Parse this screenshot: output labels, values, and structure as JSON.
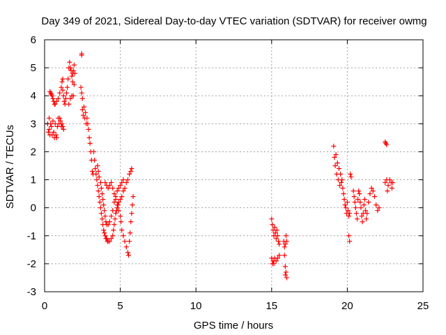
{
  "chart_data": {
    "type": "scatter",
    "title": "Day 349 of 2021, Sidereal Day-to-day VTEC variation (SDTVAR) for receiver owmg",
    "xlabel": "GPS time / hours",
    "ylabel": "SDTVAR / TECUs",
    "xlim": [
      0,
      25
    ],
    "ylim": [
      -3,
      6
    ],
    "xticks": [
      "0",
      "5",
      "10",
      "15",
      "20",
      "25"
    ],
    "yticks": [
      "-3",
      "-2",
      "-1",
      "0",
      "1",
      "2",
      "3",
      "4",
      "5",
      "6"
    ],
    "grid": true,
    "marker": "+",
    "color": "#ff0000",
    "series": [
      {
        "name": "SDTVAR",
        "points": [
          [
            0.2,
            3.0
          ],
          [
            0.25,
            2.7
          ],
          [
            0.3,
            3.2
          ],
          [
            0.3,
            2.8
          ],
          [
            0.35,
            2.6
          ],
          [
            0.4,
            3.0
          ],
          [
            0.45,
            2.9
          ],
          [
            0.5,
            2.6
          ],
          [
            0.55,
            3.1
          ],
          [
            0.6,
            2.7
          ],
          [
            0.65,
            2.5
          ],
          [
            0.7,
            3.0
          ],
          [
            0.75,
            2.6
          ],
          [
            0.8,
            2.5
          ],
          [
            0.85,
            2.9
          ],
          [
            0.9,
            3.2
          ],
          [
            0.95,
            3.0
          ],
          [
            1.0,
            3.2
          ],
          [
            1.05,
            3.1
          ],
          [
            1.1,
            2.9
          ],
          [
            1.15,
            3.0
          ],
          [
            1.2,
            2.9
          ],
          [
            1.25,
            2.8
          ],
          [
            0.35,
            4.15
          ],
          [
            0.4,
            4.1
          ],
          [
            0.45,
            4.05
          ],
          [
            0.5,
            4.0
          ],
          [
            0.55,
            3.9
          ],
          [
            0.6,
            3.8
          ],
          [
            0.65,
            3.7
          ],
          [
            0.7,
            3.7
          ],
          [
            0.8,
            3.8
          ],
          [
            0.9,
            3.9
          ],
          [
            1.0,
            4.1
          ],
          [
            1.1,
            4.3
          ],
          [
            1.15,
            4.5
          ],
          [
            1.2,
            4.6
          ],
          [
            1.2,
            4.2
          ],
          [
            1.25,
            4.0
          ],
          [
            1.3,
            3.8
          ],
          [
            1.35,
            3.7
          ],
          [
            1.4,
            3.9
          ],
          [
            1.45,
            4.1
          ],
          [
            1.5,
            4.3
          ],
          [
            1.55,
            4.6
          ],
          [
            1.6,
            5.0
          ],
          [
            1.65,
            5.2
          ],
          [
            1.7,
            5.0
          ],
          [
            1.75,
            4.9
          ],
          [
            1.8,
            4.7
          ],
          [
            1.85,
            4.5
          ],
          [
            1.9,
            4.0
          ],
          [
            1.6,
            3.7
          ],
          [
            1.7,
            3.9
          ],
          [
            1.8,
            4.0
          ],
          [
            1.85,
            4.8
          ],
          [
            1.9,
            4.9
          ],
          [
            1.95,
            5.1
          ],
          [
            2.0,
            4.8
          ],
          [
            1.95,
            4.4
          ],
          [
            2.45,
            5.5
          ],
          [
            2.45,
            5.45
          ],
          [
            2.4,
            4.3
          ],
          [
            2.45,
            4.1
          ],
          [
            2.5,
            3.9
          ],
          [
            2.5,
            3.5
          ],
          [
            2.55,
            3.3
          ],
          [
            2.6,
            3.6
          ],
          [
            2.65,
            3.2
          ],
          [
            2.7,
            3.4
          ],
          [
            2.75,
            3.0
          ],
          [
            2.8,
            3.2
          ],
          [
            2.85,
            3.0
          ],
          [
            2.9,
            2.8
          ],
          [
            2.95,
            2.5
          ],
          [
            3.0,
            2.3
          ],
          [
            3.05,
            2.0
          ],
          [
            3.1,
            1.7
          ],
          [
            3.15,
            1.3
          ],
          [
            3.2,
            1.2
          ],
          [
            3.25,
            2.0
          ],
          [
            3.3,
            1.7
          ],
          [
            3.35,
            1.4
          ],
          [
            3.4,
            1.2
          ],
          [
            3.45,
            1.0
          ],
          [
            3.5,
            0.8
          ],
          [
            3.55,
            0.6
          ],
          [
            3.6,
            0.4
          ],
          [
            3.65,
            0.2
          ],
          [
            3.7,
            0.0
          ],
          [
            3.75,
            -0.2
          ],
          [
            3.8,
            -0.4
          ],
          [
            3.85,
            -0.6
          ],
          [
            3.9,
            -0.8
          ],
          [
            3.95,
            -0.9
          ],
          [
            4.0,
            -1.0
          ],
          [
            4.05,
            -1.1
          ],
          [
            4.1,
            -1.1
          ],
          [
            4.15,
            -1.2
          ],
          [
            4.2,
            -1.2
          ],
          [
            4.3,
            -1.2
          ],
          [
            4.4,
            -1.1
          ],
          [
            4.5,
            -1.0
          ],
          [
            4.55,
            -0.8
          ],
          [
            4.6,
            -0.6
          ],
          [
            4.65,
            -0.4
          ],
          [
            4.7,
            -0.2
          ],
          [
            4.75,
            -0.1
          ],
          [
            4.8,
            0.0
          ],
          [
            4.85,
            0.1
          ],
          [
            4.9,
            0.2
          ],
          [
            5.0,
            0.3
          ],
          [
            5.1,
            0.4
          ],
          [
            5.2,
            0.6
          ],
          [
            5.3,
            0.7
          ],
          [
            5.4,
            0.9
          ],
          [
            5.5,
            1.0
          ],
          [
            5.6,
            1.2
          ],
          [
            5.7,
            1.3
          ],
          [
            5.75,
            1.4
          ],
          [
            3.5,
            1.5
          ],
          [
            3.55,
            1.3
          ],
          [
            3.6,
            1.1
          ],
          [
            3.7,
            0.9
          ],
          [
            3.75,
            0.7
          ],
          [
            3.8,
            0.5
          ],
          [
            3.85,
            0.3
          ],
          [
            3.9,
            0.1
          ],
          [
            3.95,
            -0.1
          ],
          [
            4.0,
            -0.3
          ],
          [
            4.05,
            -0.5
          ],
          [
            4.1,
            -0.6
          ],
          [
            4.2,
            -0.6
          ],
          [
            4.3,
            -0.5
          ],
          [
            4.4,
            -0.3
          ],
          [
            4.5,
            -0.1
          ],
          [
            4.6,
            0.2
          ],
          [
            4.7,
            0.4
          ],
          [
            4.8,
            0.6
          ],
          [
            4.9,
            0.7
          ],
          [
            5.0,
            0.8
          ],
          [
            5.1,
            0.9
          ],
          [
            5.2,
            1.0
          ],
          [
            4.0,
            0.9
          ],
          [
            4.1,
            0.8
          ],
          [
            4.2,
            0.7
          ],
          [
            4.3,
            0.8
          ],
          [
            4.4,
            0.9
          ],
          [
            4.5,
            0.7
          ],
          [
            4.6,
            0.5
          ],
          [
            4.7,
            0.3
          ],
          [
            4.8,
            0.1
          ],
          [
            4.9,
            -0.1
          ],
          [
            5.0,
            -0.3
          ],
          [
            5.05,
            -0.5
          ],
          [
            5.1,
            -0.8
          ],
          [
            5.2,
            -1.0
          ],
          [
            5.3,
            -1.2
          ],
          [
            5.4,
            -1.4
          ],
          [
            5.5,
            -1.6
          ],
          [
            5.55,
            -1.7
          ],
          [
            5.6,
            -1.2
          ],
          [
            5.65,
            -0.9
          ],
          [
            5.7,
            -0.5
          ],
          [
            5.75,
            -0.2
          ],
          [
            5.8,
            0.1
          ],
          [
            5.85,
            0.4
          ],
          [
            15.0,
            -0.4
          ],
          [
            15.05,
            -0.6
          ],
          [
            15.1,
            -0.8
          ],
          [
            15.15,
            -1.0
          ],
          [
            15.2,
            -0.7
          ],
          [
            15.25,
            -0.9
          ],
          [
            15.3,
            -1.1
          ],
          [
            15.35,
            -0.8
          ],
          [
            15.4,
            -1.0
          ],
          [
            15.45,
            -1.2
          ],
          [
            15.5,
            -1.3
          ],
          [
            15.0,
            -1.8
          ],
          [
            15.05,
            -2.0
          ],
          [
            15.1,
            -1.9
          ],
          [
            15.15,
            -2.0
          ],
          [
            15.2,
            -1.8
          ],
          [
            15.3,
            -1.9
          ],
          [
            15.4,
            -1.8
          ],
          [
            15.5,
            -1.7
          ],
          [
            15.8,
            -1.2
          ],
          [
            15.85,
            -1.4
          ],
          [
            15.9,
            -1.3
          ],
          [
            15.95,
            -1.0
          ],
          [
            16.0,
            -1.2
          ],
          [
            15.85,
            -1.7
          ],
          [
            15.9,
            -2.1
          ],
          [
            15.95,
            -2.3
          ],
          [
            16.0,
            -2.5
          ],
          [
            15.9,
            -2.4
          ],
          [
            19.1,
            2.2
          ],
          [
            19.15,
            1.8
          ],
          [
            19.2,
            1.5
          ],
          [
            19.25,
            1.9
          ],
          [
            19.3,
            1.2
          ],
          [
            19.35,
            1.6
          ],
          [
            19.4,
            1.0
          ],
          [
            19.45,
            1.4
          ],
          [
            19.5,
            0.8
          ],
          [
            19.55,
            1.2
          ],
          [
            19.6,
            0.9
          ],
          [
            19.65,
            1.0
          ],
          [
            19.7,
            0.7
          ],
          [
            19.75,
            0.5
          ],
          [
            19.8,
            0.3
          ],
          [
            19.85,
            0.1
          ],
          [
            19.9,
            0.0
          ],
          [
            19.95,
            -0.2
          ],
          [
            20.0,
            0.2
          ],
          [
            20.05,
            -0.1
          ],
          [
            20.1,
            -0.3
          ],
          [
            20.15,
            -0.2
          ],
          [
            20.2,
            1.2
          ],
          [
            20.25,
            1.1
          ],
          [
            20.1,
            -1.0
          ],
          [
            20.15,
            -1.2
          ],
          [
            20.4,
            0.6
          ],
          [
            20.45,
            0.4
          ],
          [
            20.5,
            0.2
          ],
          [
            20.55,
            0.0
          ],
          [
            20.6,
            -0.2
          ],
          [
            20.65,
            -0.4
          ],
          [
            20.7,
            0.3
          ],
          [
            20.75,
            0.6
          ],
          [
            20.8,
            0.5
          ],
          [
            20.85,
            0.2
          ],
          [
            20.9,
            0.0
          ],
          [
            20.95,
            -0.3
          ],
          [
            21.0,
            -0.5
          ],
          [
            21.05,
            -0.2
          ],
          [
            21.1,
            0.1
          ],
          [
            21.15,
            0.3
          ],
          [
            21.2,
            -0.1
          ],
          [
            21.25,
            -0.4
          ],
          [
            21.3,
            -0.2
          ],
          [
            21.4,
            0.2
          ],
          [
            21.5,
            0.5
          ],
          [
            21.6,
            0.7
          ],
          [
            21.7,
            0.6
          ],
          [
            21.8,
            0.4
          ],
          [
            21.9,
            0.1
          ],
          [
            22.0,
            -0.1
          ],
          [
            22.1,
            0.0
          ],
          [
            22.5,
            2.35
          ],
          [
            22.55,
            2.3
          ],
          [
            22.6,
            2.25
          ],
          [
            22.5,
            0.9
          ],
          [
            22.6,
            1.0
          ],
          [
            22.7,
            0.8
          ],
          [
            22.8,
            1.0
          ],
          [
            22.9,
            0.9
          ],
          [
            22.95,
            0.7
          ],
          [
            23.0,
            0.9
          ],
          [
            22.65,
            0.6
          ]
        ]
      }
    ]
  }
}
